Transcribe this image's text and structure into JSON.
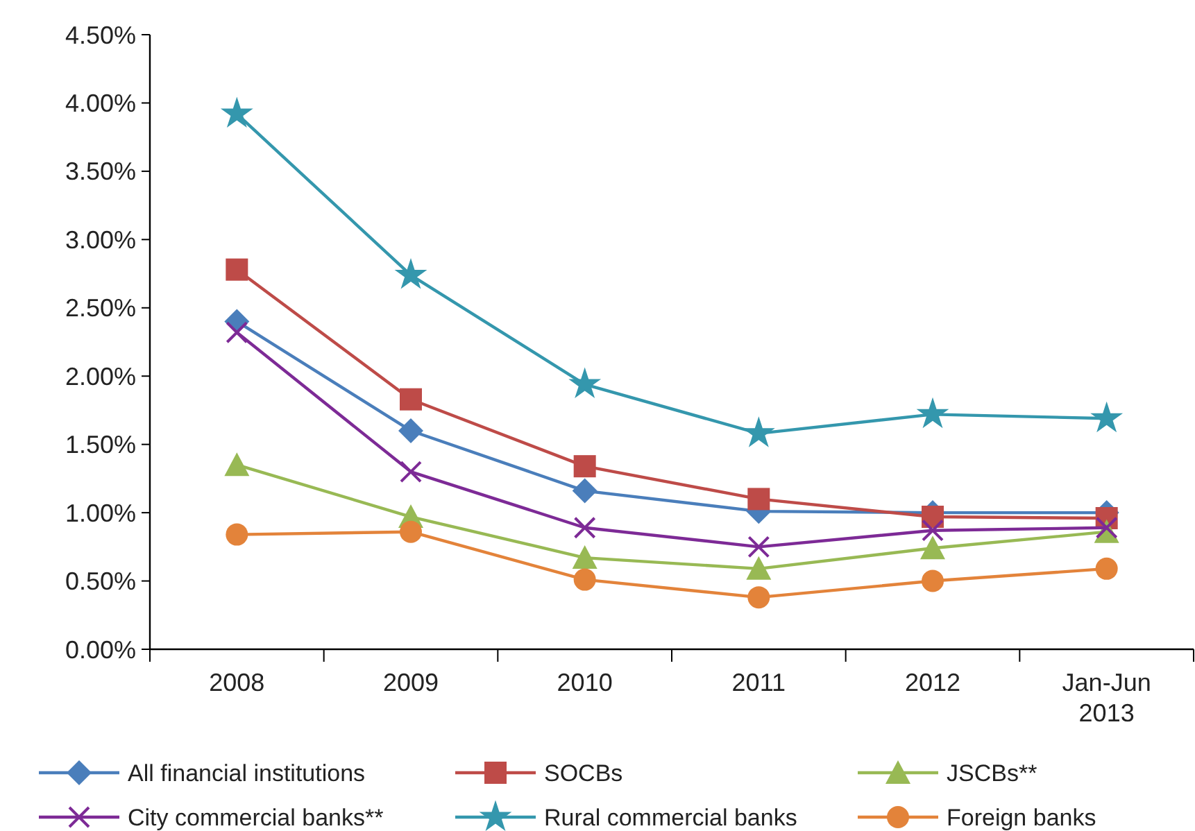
{
  "chart_data": {
    "type": "line",
    "categories": [
      "2008",
      "2009",
      "2010",
      "2011",
      "2012",
      "Jan-Jun 2013"
    ],
    "series": [
      {
        "name": "All financial institutions",
        "color": "#4a7ebb",
        "marker": "diamond",
        "values": [
          2.4,
          1.6,
          1.16,
          1.01,
          1.0,
          1.0
        ]
      },
      {
        "name": "SOCBs",
        "color": "#be4b48",
        "marker": "square",
        "values": [
          2.78,
          1.83,
          1.34,
          1.1,
          0.97,
          0.96
        ]
      },
      {
        "name": "JSCBs**",
        "color": "#98b954",
        "marker": "triangle",
        "values": [
          1.35,
          0.97,
          0.67,
          0.59,
          0.74,
          0.86
        ]
      },
      {
        "name": "City commercial banks**",
        "color": "#7d2a96",
        "marker": "cross",
        "values": [
          2.32,
          1.3,
          0.89,
          0.75,
          0.87,
          0.89
        ]
      },
      {
        "name": "Rural commercial banks",
        "color": "#3497ad",
        "marker": "star",
        "values": [
          3.92,
          2.74,
          1.94,
          1.58,
          1.72,
          1.69
        ]
      },
      {
        "name": "Foreign banks",
        "color": "#e3833a",
        "marker": "circle",
        "values": [
          0.84,
          0.86,
          0.51,
          0.38,
          0.5,
          0.59
        ]
      }
    ],
    "ylim": [
      0,
      4.5
    ],
    "yticks": [
      {
        "value": 0,
        "label": "0.00%"
      },
      {
        "value": 0.5,
        "label": "0.50%"
      },
      {
        "value": 1,
        "label": "1.00%"
      },
      {
        "value": 1.5,
        "label": "1.50%"
      },
      {
        "value": 2,
        "label": "2.00%"
      },
      {
        "value": 2.5,
        "label": "2.50%"
      },
      {
        "value": 3,
        "label": "3.00%"
      },
      {
        "value": 3.5,
        "label": "3.50%"
      },
      {
        "value": 4,
        "label": "4.00%"
      },
      {
        "value": 4.5,
        "label": "4.50%"
      }
    ],
    "grid": false,
    "legend": "bottom",
    "line_style": "solid"
  }
}
